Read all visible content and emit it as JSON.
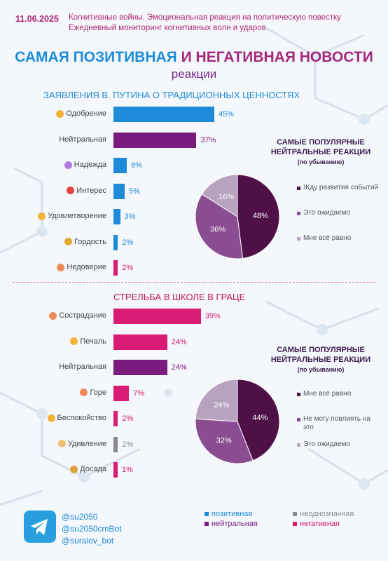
{
  "header": {
    "date": "11.06.2025",
    "line1": "Когнитивные войны. Эмоциональная реакция на политическую повестку",
    "line2": "Ежедневный мониторинг когнитивных волн и ударов"
  },
  "title": {
    "positive": "САМАЯ ПОЗИТИВНАЯ",
    "connector": " И ",
    "negative": "НЕГАТИВНАЯ НОВОСТИ",
    "subtitle": "реакции"
  },
  "colors": {
    "positive": "#1e8bd8",
    "neutral": "#7a1c7e",
    "ambiguous": "#888888",
    "negative": "#d81b73",
    "pie1": "#4f1048",
    "pie2": "#8b4d92",
    "pie3": "#b7a2bf"
  },
  "chart_data": [
    {
      "type": "bar",
      "title": "ЗАЯВЛЕНИЯ В. ПУТИНА О ТРАДИЦИОННЫХ ЦЕННОСТЯХ",
      "categories": [
        "Одобрение",
        "Нейтральная",
        "Надежда",
        "Интерес",
        "Удовлетворение",
        "Гордость",
        "Недоверие"
      ],
      "icons": [
        "handshake",
        "",
        "hope",
        "interrobang",
        "smile",
        "trophy",
        "distrust"
      ],
      "values": [
        45,
        37,
        6,
        5,
        3,
        2,
        2
      ],
      "labels": [
        "45%",
        "37%",
        "6%",
        "5%",
        "3%",
        "2%",
        "2%"
      ],
      "kinds": [
        "positive",
        "neutral",
        "positive",
        "positive",
        "positive",
        "positive",
        "negative"
      ]
    },
    {
      "type": "pie",
      "title": "САМЫЕ ПОПУЛЯРНЫЕ НЕЙТРАЛЬНЫЕ РЕАКЦИИ",
      "note": "(по убыванию)",
      "categories": [
        "Жду развития событий",
        "Это ожидаемо",
        "Мне всё равно"
      ],
      "values": [
        48,
        36,
        16
      ],
      "labels": [
        "48%",
        "36%",
        "16%"
      ]
    },
    {
      "type": "bar",
      "title": "СТРЕЛЬБА В ШКОЛЕ В ГРАЦЕ",
      "categories": [
        "Сострадание",
        "Печаль",
        "Нейтральная",
        "Горе",
        "Беспокойство",
        "Удивление",
        "Досада"
      ],
      "icons": [
        "compassion",
        "sad",
        "",
        "grief",
        "worry",
        "surprise",
        "annoyed"
      ],
      "values": [
        39,
        24,
        24,
        7,
        2,
        2,
        1
      ],
      "labels": [
        "39%",
        "24%",
        "24%",
        "7%",
        "2%",
        "2%",
        "1%"
      ],
      "kinds": [
        "negative",
        "negative",
        "neutral",
        "negative",
        "negative",
        "ambiguous",
        "negative"
      ]
    },
    {
      "type": "pie",
      "title": "САМЫЕ ПОПУЛЯРНЫЕ НЕЙТРАЛЬНЫЕ РЕАКЦИИ",
      "note": "(по убыванию)",
      "categories": [
        "Мне всё равно",
        "Не могу повлиять на это",
        "Это ожидаемо"
      ],
      "values": [
        44,
        32,
        24
      ],
      "labels": [
        "44%",
        "32%",
        "24%"
      ]
    }
  ],
  "footer": {
    "links": [
      "@su2050",
      "@su2050cmBot",
      "@suralov_bot"
    ],
    "key": [
      {
        "label": "позитивная",
        "kind": "positive"
      },
      {
        "label": "неоднозначная",
        "kind": "ambiguous"
      },
      {
        "label": "нейтральная",
        "kind": "neutral"
      },
      {
        "label": "негативная",
        "kind": "negative"
      }
    ]
  }
}
